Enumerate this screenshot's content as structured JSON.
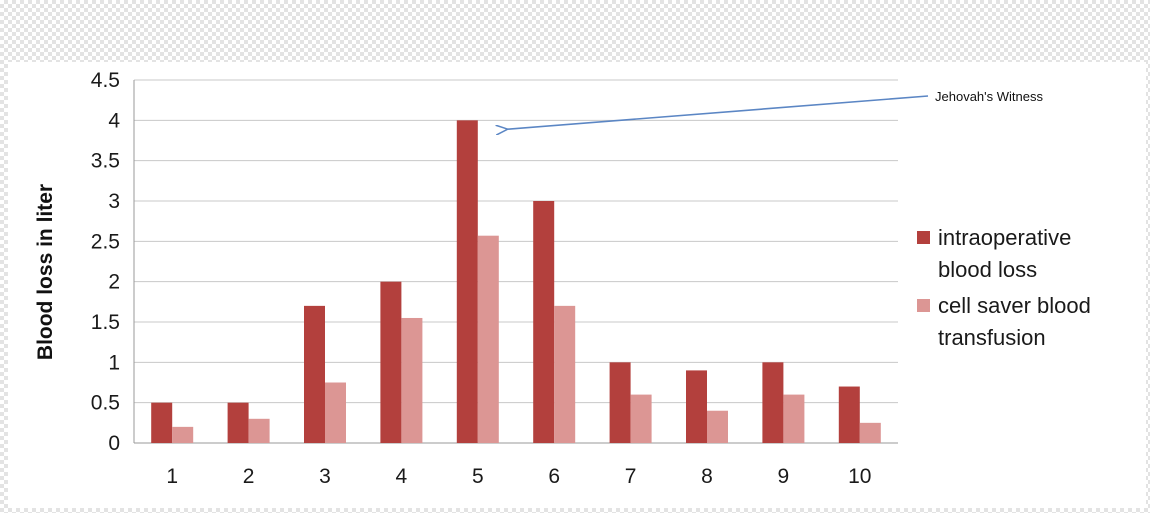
{
  "chart_data": {
    "type": "bar",
    "categories": [
      "1",
      "2",
      "3",
      "4",
      "5",
      "6",
      "7",
      "8",
      "9",
      "10"
    ],
    "series": [
      {
        "name": "intraoperative blood loss",
        "legend_lines": [
          "intraoperative",
          "blood loss"
        ],
        "color": "#b3403d",
        "values": [
          0.5,
          0.5,
          1.7,
          2.0,
          4.0,
          3.0,
          1.0,
          0.9,
          1.0,
          0.7
        ]
      },
      {
        "name": "cell saver blood transfusion",
        "legend_lines": [
          "cell saver blood",
          "transfusion"
        ],
        "color": "#dc9694",
        "values": [
          0.2,
          0.3,
          0.75,
          1.55,
          2.57,
          1.7,
          0.6,
          0.4,
          0.6,
          0.25
        ]
      }
    ],
    "yticks": [
      "0",
      "0.5",
      "1",
      "1.5",
      "2",
      "2.5",
      "3",
      "3.5",
      "4",
      "4.5"
    ],
    "ylim": [
      0,
      4.5
    ],
    "ylabel": "Blood loss in liter",
    "xlabel": "",
    "grid": true,
    "legend_position": "right",
    "annotation": {
      "text": "Jehovah's  Witness",
      "category": "5",
      "value": 4.0,
      "arrow_color": "#5b86c4"
    }
  }
}
